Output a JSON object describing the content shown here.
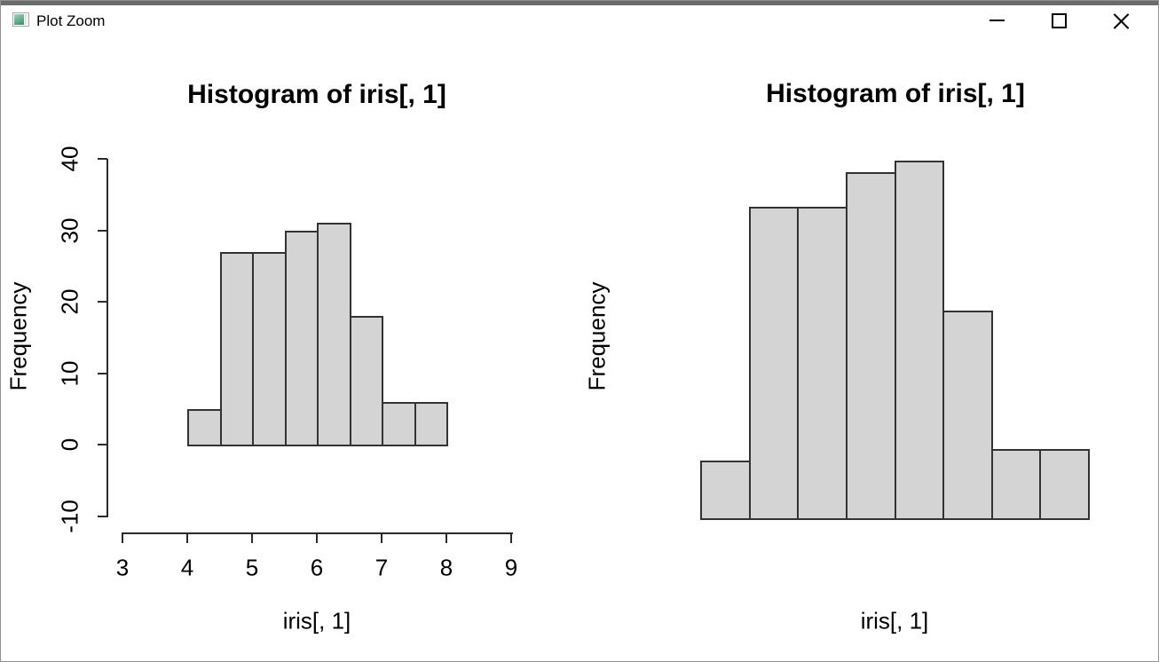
{
  "window": {
    "title": "Plot Zoom",
    "controls": {
      "minimize": "minimize",
      "maximize": "maximize",
      "close": "close"
    }
  },
  "colors": {
    "bar_fill": "#d4d4d4",
    "bar_border": "#333333",
    "axis": "#2b2b2b",
    "top_edge": "#6b6b6b",
    "window_border": "#8f8f8f"
  },
  "chart_data": [
    {
      "type": "bar",
      "subtype": "histogram",
      "title": "Histogram of iris[, 1]",
      "xlabel": "iris[, 1]",
      "ylabel": "Frequency",
      "bin_start": 4.0,
      "bin_width": 0.5,
      "bin_edges": [
        4.0,
        4.5,
        5.0,
        5.5,
        6.0,
        6.5,
        7.0,
        7.5,
        8.0
      ],
      "values": [
        5,
        27,
        27,
        30,
        31,
        18,
        6,
        6
      ],
      "x_ticks": [
        3,
        4,
        5,
        6,
        7,
        8,
        9
      ],
      "y_ticks": [
        -10,
        0,
        10,
        20,
        30,
        40
      ],
      "xlim": [
        3,
        9
      ],
      "ylim": [
        -10,
        40
      ],
      "axes_visible": true,
      "grid": false,
      "legend": false
    },
    {
      "type": "bar",
      "subtype": "histogram",
      "title": "Histogram of iris[, 1]",
      "xlabel": "iris[, 1]",
      "ylabel": "Frequency",
      "bin_start": 4.0,
      "bin_width": 0.5,
      "bin_edges": [
        4.0,
        4.5,
        5.0,
        5.5,
        6.0,
        6.5,
        7.0,
        7.5,
        8.0
      ],
      "values": [
        5,
        27,
        27,
        30,
        31,
        18,
        6,
        6
      ],
      "x_ticks": [],
      "y_ticks": [],
      "axes_visible": false,
      "grid": false,
      "legend": false
    }
  ]
}
